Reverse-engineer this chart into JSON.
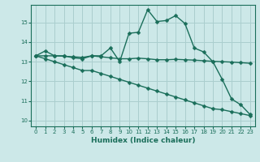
{
  "xlabel": "Humidex (Indice chaleur)",
  "bg_color": "#cce8e8",
  "grid_color": "#aacece",
  "line_color": "#1a6e5a",
  "markersize": 2.5,
  "linewidth": 1.0,
  "xlim": [
    -0.5,
    23.5
  ],
  "ylim": [
    9.7,
    15.9
  ],
  "yticks": [
    10,
    11,
    12,
    13,
    14,
    15
  ],
  "xticks": [
    0,
    1,
    2,
    3,
    4,
    5,
    6,
    7,
    8,
    9,
    10,
    11,
    12,
    13,
    14,
    15,
    16,
    17,
    18,
    19,
    20,
    21,
    22,
    23
  ],
  "line1_x": [
    0,
    1,
    2,
    3,
    4,
    5,
    6,
    7,
    8,
    9,
    10,
    11,
    12,
    13,
    14,
    15,
    16,
    17,
    18,
    19,
    20,
    21,
    22,
    23
  ],
  "line1_y": [
    13.3,
    13.55,
    13.3,
    13.3,
    13.2,
    13.15,
    13.3,
    13.3,
    13.7,
    13.0,
    14.45,
    14.5,
    15.65,
    15.05,
    15.1,
    15.35,
    14.95,
    13.7,
    13.5,
    13.0,
    12.1,
    11.1,
    10.8,
    10.3
  ],
  "line2_x": [
    0,
    1,
    2,
    3,
    4,
    5,
    6,
    7,
    8,
    9,
    10,
    11,
    12,
    13,
    14,
    15,
    16,
    17,
    18,
    19,
    20,
    21,
    22,
    23
  ],
  "line2_y": [
    13.3,
    13.3,
    13.3,
    13.28,
    13.25,
    13.22,
    13.3,
    13.25,
    13.2,
    13.15,
    13.15,
    13.18,
    13.15,
    13.1,
    13.1,
    13.12,
    13.1,
    13.08,
    13.05,
    13.02,
    13.0,
    12.98,
    12.95,
    12.92
  ],
  "line3_x": [
    0,
    1,
    2,
    3,
    4,
    5,
    6,
    7,
    8,
    9,
    10,
    11,
    12,
    13,
    14,
    15,
    16,
    17,
    18,
    19,
    20,
    21,
    22,
    23
  ],
  "line3_y": [
    13.3,
    13.15,
    13.0,
    12.85,
    12.7,
    12.55,
    12.55,
    12.4,
    12.25,
    12.1,
    11.95,
    11.8,
    11.65,
    11.5,
    11.35,
    11.2,
    11.05,
    10.9,
    10.75,
    10.6,
    10.55,
    10.45,
    10.35,
    10.25
  ]
}
